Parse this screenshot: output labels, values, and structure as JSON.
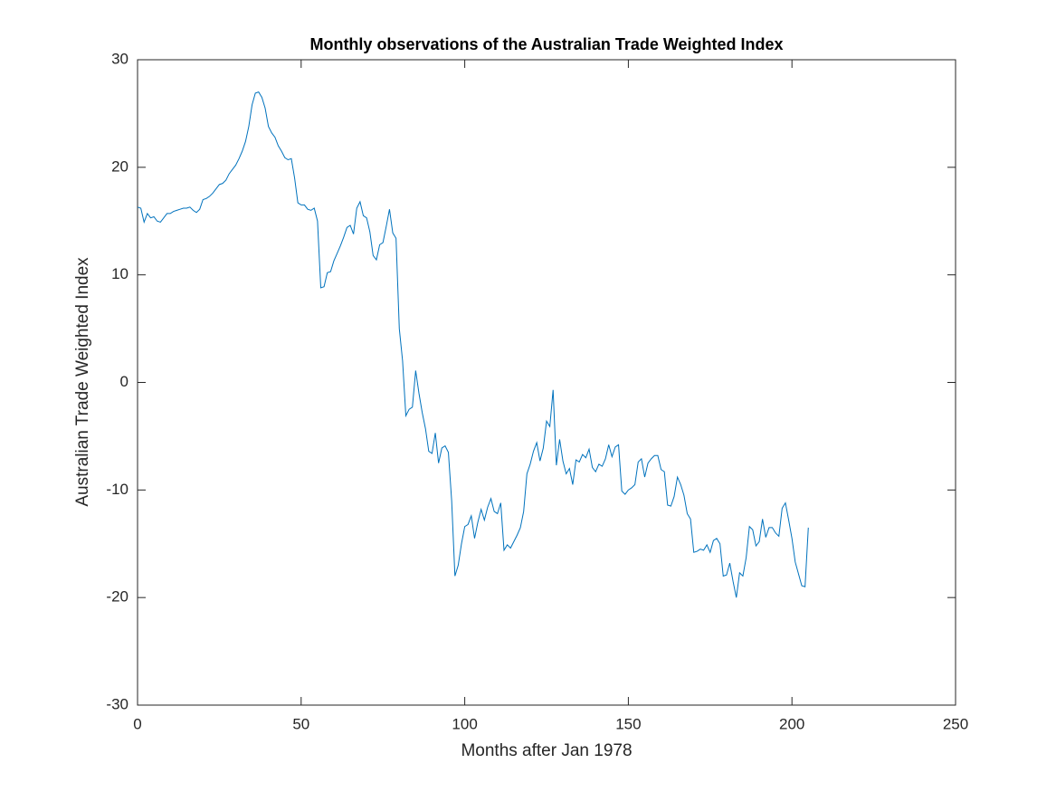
{
  "chart_data": {
    "type": "line",
    "title": "Monthly observations of the Australian Trade Weighted Index",
    "xlabel": "Months after Jan 1978",
    "ylabel": "Australian Trade Weighted Index",
    "xlim": [
      0,
      250
    ],
    "xticks": [
      0,
      50,
      100,
      150,
      200,
      250
    ],
    "ylim": [
      -30,
      30
    ],
    "yticks": [
      -30,
      -20,
      -10,
      0,
      10,
      20,
      30
    ],
    "grid": false,
    "box": true,
    "x": [
      0,
      1,
      2,
      3,
      4,
      5,
      6,
      7,
      8,
      9,
      10,
      11,
      12,
      13,
      14,
      15,
      16,
      17,
      18,
      19,
      20,
      21,
      22,
      23,
      24,
      25,
      26,
      27,
      28,
      29,
      30,
      31,
      32,
      33,
      34,
      35,
      36,
      37,
      38,
      39,
      40,
      41,
      42,
      43,
      44,
      45,
      46,
      47,
      48,
      49,
      50,
      51,
      52,
      53,
      54,
      55,
      56,
      57,
      58,
      59,
      60,
      61,
      62,
      63,
      64,
      65,
      66,
      67,
      68,
      69,
      70,
      71,
      72,
      73,
      74,
      75,
      76,
      77,
      78,
      79,
      80,
      81,
      82,
      83,
      84,
      85,
      86,
      87,
      88,
      89,
      90,
      91,
      92,
      93,
      94,
      95,
      96,
      97,
      98,
      99,
      100,
      101,
      102,
      103,
      104,
      105,
      106,
      107,
      108,
      109,
      110,
      111,
      112,
      113,
      114,
      115,
      116,
      117,
      118,
      119,
      120,
      121,
      122,
      123,
      124,
      125,
      126,
      127,
      128,
      129,
      130,
      131,
      132,
      133,
      134,
      135,
      136,
      137,
      138,
      139,
      140,
      141,
      142,
      143,
      144,
      145,
      146,
      147,
      148,
      149,
      150,
      151,
      152,
      153,
      154,
      155,
      156,
      157,
      158,
      159,
      160,
      161,
      162,
      163,
      164,
      165,
      166,
      167,
      168,
      169,
      170,
      171,
      172,
      173,
      174,
      175,
      176,
      177,
      178,
      179,
      180,
      181,
      182,
      183,
      184,
      185,
      186,
      187,
      188,
      189,
      190,
      191,
      192,
      193,
      194,
      195,
      196,
      197,
      198,
      199,
      200,
      201,
      202,
      203,
      204,
      205
    ],
    "series": [
      {
        "color": "#0072bd",
        "values": [
          16.3,
          16.2,
          14.9,
          15.7,
          15.3,
          15.4,
          15.0,
          14.9,
          15.3,
          15.7,
          15.7,
          15.9,
          16.0,
          16.1,
          16.2,
          16.2,
          16.3,
          16.0,
          15.8,
          16.1,
          17.0,
          17.1,
          17.3,
          17.6,
          18.0,
          18.4,
          18.5,
          18.8,
          19.4,
          19.8,
          20.2,
          20.8,
          21.5,
          22.4,
          23.8,
          25.8,
          26.9,
          27.0,
          26.5,
          25.5,
          23.8,
          23.2,
          22.8,
          22.0,
          21.5,
          20.9,
          20.7,
          20.8,
          19.0,
          16.7,
          16.5,
          16.5,
          16.1,
          16.0,
          16.2,
          15.0,
          8.8,
          8.9,
          10.2,
          10.3,
          11.3,
          12.0,
          12.7,
          13.5,
          14.4,
          14.6,
          13.8,
          16.2,
          16.8,
          15.5,
          15.3,
          14.0,
          11.8,
          11.4,
          12.8,
          13.0,
          14.5,
          16.1,
          13.9,
          13.4,
          5.0,
          2.0,
          -3.1,
          -2.5,
          -2.3,
          1.1,
          -1.0,
          -2.8,
          -4.3,
          -6.4,
          -6.6,
          -4.7,
          -7.5,
          -6.1,
          -5.9,
          -6.5,
          -11.0,
          -18.0,
          -17.0,
          -15.0,
          -13.4,
          -13.2,
          -12.4,
          -14.5,
          -13.0,
          -11.8,
          -12.8,
          -11.6,
          -10.8,
          -12.0,
          -12.2,
          -11.2,
          -15.6,
          -15.1,
          -15.4,
          -14.8,
          -14.2,
          -13.5,
          -12.0,
          -8.5,
          -7.6,
          -6.4,
          -5.6,
          -7.3,
          -6.1,
          -3.6,
          -4.1,
          -0.7,
          -7.7,
          -5.3,
          -7.3,
          -8.5,
          -8.0,
          -9.5,
          -7.2,
          -7.4,
          -6.7,
          -7.0,
          -6.2,
          -7.9,
          -8.3,
          -7.6,
          -7.8,
          -7.1,
          -5.8,
          -6.9,
          -6.0,
          -5.8,
          -10.1,
          -10.4,
          -10.0,
          -9.8,
          -9.5,
          -7.4,
          -7.1,
          -8.8,
          -7.5,
          -7.1,
          -6.8,
          -6.8,
          -8.1,
          -8.3,
          -11.4,
          -11.5,
          -10.6,
          -8.8,
          -9.5,
          -10.5,
          -12.2,
          -12.7,
          -15.8,
          -15.7,
          -15.5,
          -15.6,
          -15.1,
          -15.8,
          -14.7,
          -14.5,
          -15.0,
          -18.0,
          -17.9,
          -16.8,
          -18.5,
          -20.0,
          -17.7,
          -18.0,
          -16.3,
          -13.4,
          -13.7,
          -15.2,
          -14.8,
          -12.7,
          -14.4,
          -13.5,
          -13.5,
          -14.0,
          -14.3,
          -11.7,
          -11.2,
          -12.8,
          -14.5,
          -16.7,
          -17.8,
          -18.9,
          -19.0,
          -13.5
        ]
      }
    ]
  }
}
